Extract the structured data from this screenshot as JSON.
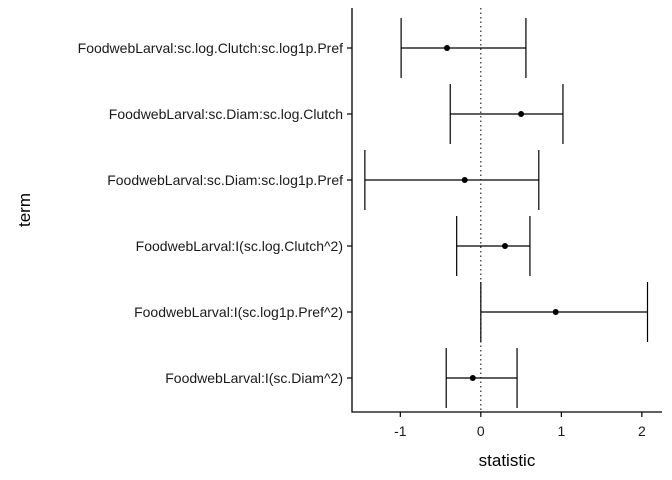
{
  "chart_data": {
    "type": "errorbar",
    "orientation": "horizontal",
    "xlabel": "statistic",
    "ylabel": "term",
    "xlim": [
      -1.6,
      2.25
    ],
    "x_ticks": [
      -1,
      0,
      1,
      2
    ],
    "x_tick_labels": [
      "-1",
      "0",
      "1",
      "2"
    ],
    "reference_line": {
      "x": 0,
      "style": "dotted"
    },
    "grid": false,
    "legend": "none",
    "terms": [
      {
        "term": "FoodwebLarval:sc.log.Clutch:sc.log1p.Pref",
        "estimate": -0.42,
        "low": -0.99,
        "high": 0.56
      },
      {
        "term": "FoodwebLarval:sc.Diam:sc.log.Clutch",
        "estimate": 0.5,
        "low": -0.38,
        "high": 1.02
      },
      {
        "term": "FoodwebLarval:sc.Diam:sc.log1p.Pref",
        "estimate": -0.2,
        "low": -1.44,
        "high": 0.72
      },
      {
        "term": "FoodwebLarval:I(sc.log.Clutch^2)",
        "estimate": 0.3,
        "low": -0.3,
        "high": 0.61
      },
      {
        "term": "FoodwebLarval:I(sc.log1p.Pref^2)",
        "estimate": 0.93,
        "low": 0.0,
        "high": 2.07
      },
      {
        "term": "FoodwebLarval:I(sc.Diam^2)",
        "estimate": -0.1,
        "low": -0.43,
        "high": 0.45
      }
    ],
    "colors": {
      "ink": "#000000",
      "background": "#ffffff"
    }
  }
}
